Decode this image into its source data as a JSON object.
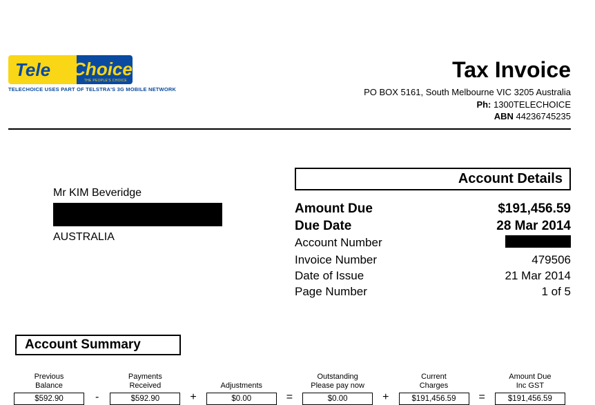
{
  "logo": {
    "left": "Tele",
    "right": "Choice",
    "sub": "THE PEOPLE'S CHOICE",
    "tagline": "TELECHOICE USES PART OF TELSTRA'S 3G MOBILE NETWORK",
    "left_bg": "#f9d616",
    "left_color": "#0a4aa0",
    "right_bg": "#0a4aa0",
    "right_color": "#f9d616"
  },
  "header": {
    "title": "Tax Invoice",
    "address": "PO BOX 5161, South Melbourne VIC 3205 Australia",
    "phone_label": "Ph: ",
    "phone": "1300TELECHOICE",
    "abn_label": "ABN ",
    "abn": "44236745235"
  },
  "recipient": {
    "name": "Mr  KIM  Beveridge",
    "country": "AUSTRALIA"
  },
  "account": {
    "header": "Account Details",
    "rows": [
      {
        "label": "Amount Due",
        "value": "$191,456.59",
        "bold": true
      },
      {
        "label": "Due Date",
        "value": "28 Mar 2014",
        "bold": true
      },
      {
        "label": "Account Number",
        "value": "[REDACTED]",
        "redacted": true
      },
      {
        "label": "Invoice Number",
        "value": "479506"
      },
      {
        "label": "Date of Issue",
        "value": "21 Mar 2014"
      },
      {
        "label": "Page Number",
        "value": "1 of 5"
      }
    ]
  },
  "summary": {
    "header": "Account Summary",
    "items": [
      {
        "label1": "Previous",
        "label2": "Balance",
        "value": "$592.90"
      },
      {
        "label1": "Payments",
        "label2": "Received",
        "value": "$592.90"
      },
      {
        "label1": "",
        "label2": "Adjustments",
        "value": "$0.00"
      },
      {
        "label1": "Outstanding",
        "label2": "Please pay now",
        "value": "$0.00"
      },
      {
        "label1": "Current",
        "label2": "Charges",
        "value": "$191,456.59"
      },
      {
        "label1": "Amount Due",
        "label2": "Inc GST",
        "value": "$191,456.59"
      }
    ],
    "operators": [
      "-",
      "+",
      "=",
      "+",
      "="
    ]
  }
}
